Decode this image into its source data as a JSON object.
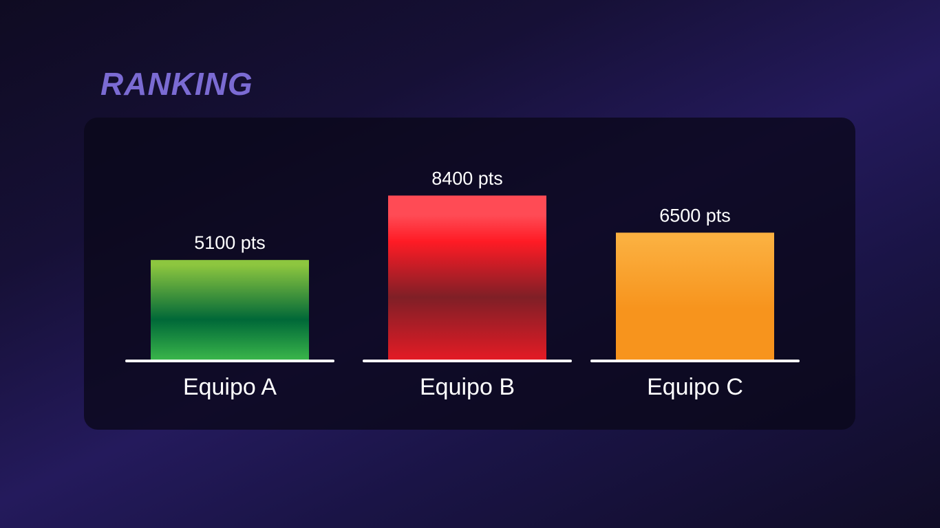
{
  "header": {
    "title": "RANKING"
  },
  "chart_data": {
    "type": "bar",
    "categories": [
      "Equipo A",
      "Equipo B",
      "Equipo C"
    ],
    "values": [
      5100,
      8400,
      6500
    ],
    "value_labels": [
      "5100 pts",
      "8400 pts",
      "6500 pts"
    ],
    "unit": "pts",
    "ylim": [
      0,
      10000
    ],
    "grid": false,
    "colors": [
      [
        "#8dc63f",
        "#006838",
        "#39b54a"
      ],
      [
        "#ff4b55",
        "#ff1b25",
        "#7f1f26",
        "#e31b25"
      ],
      [
        "#fbb040",
        "#f7941d",
        "#f7941d"
      ]
    ]
  }
}
